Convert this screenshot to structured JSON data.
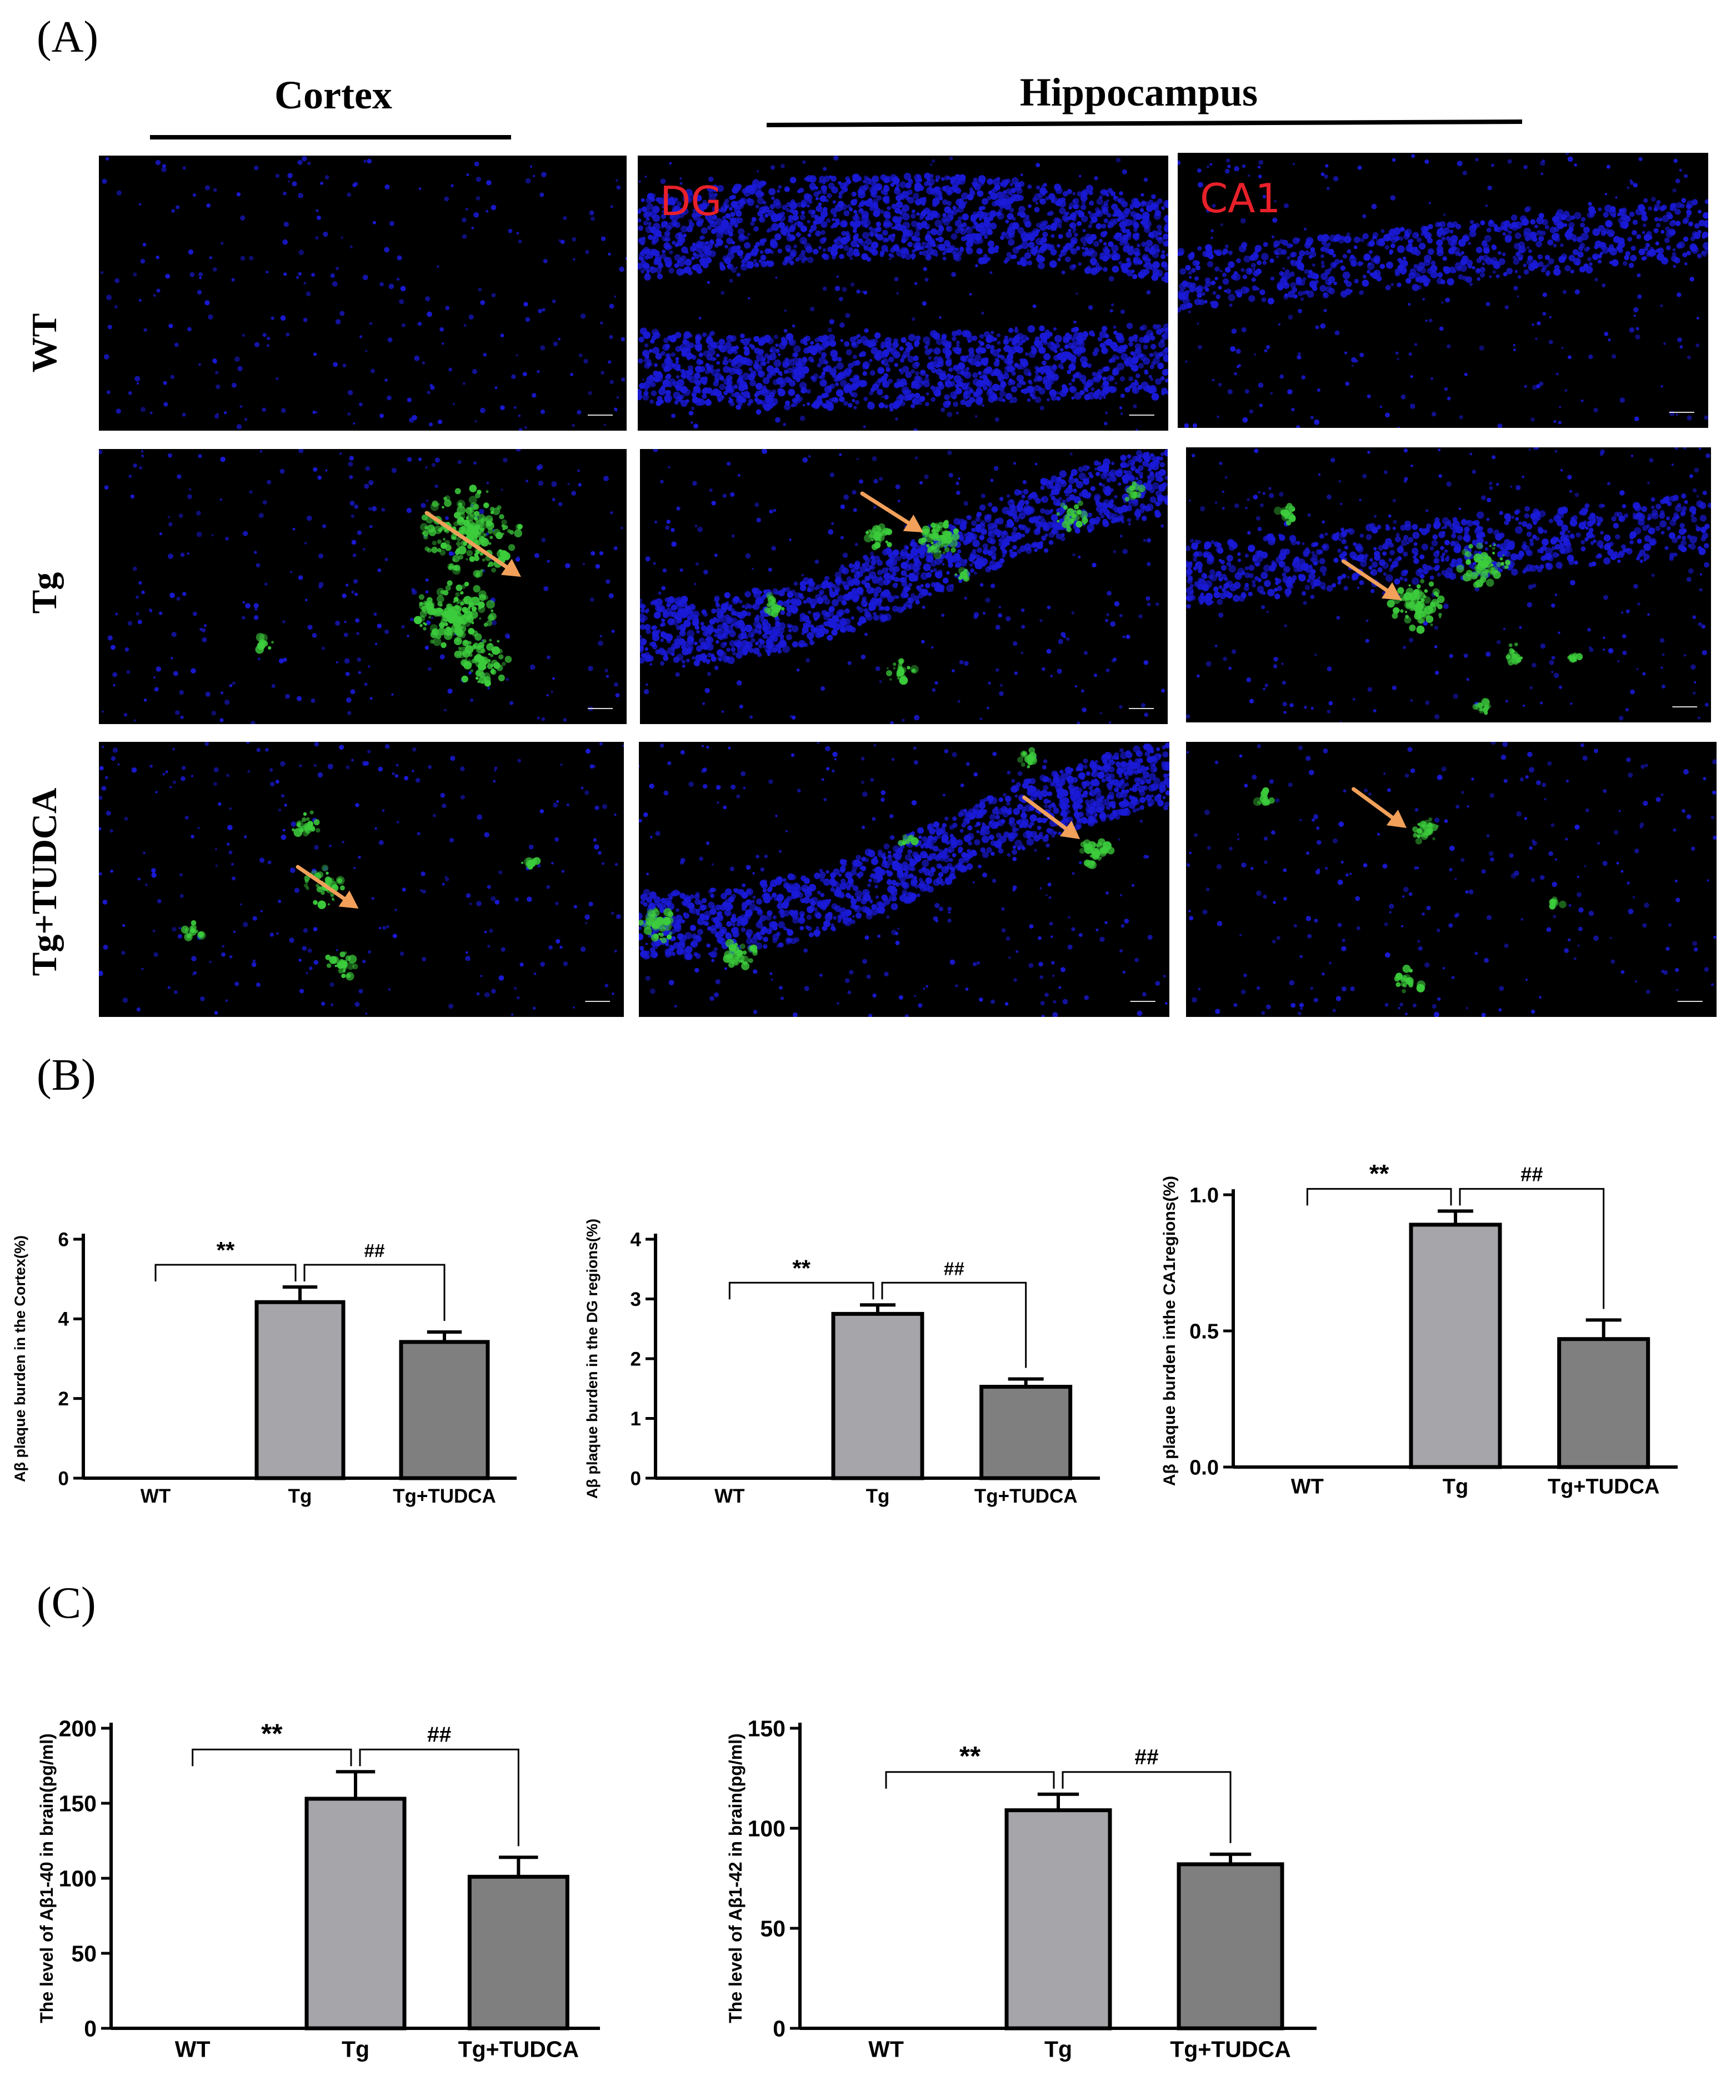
{
  "panels": {
    "A": "(A)",
    "B": "(B)",
    "C": "(C)"
  },
  "regions": {
    "cortex": "Cortex",
    "hippocampus": "Hippocampus"
  },
  "subregions": {
    "dg": "DG",
    "ca1": "CA1"
  },
  "rows": [
    "WT",
    "Tg",
    "Tg+TUDCA"
  ],
  "colors": {
    "nuclei": "#1a1ad8",
    "plaque": "#3ccc3c",
    "arrow": "#f2a05a",
    "tag": "#e8202a",
    "bar_tg": "#a6a6aa",
    "bar_tudca": "#7f7f7f"
  },
  "chart_data": [
    {
      "type": "bar",
      "categories": [
        "WT",
        "Tg",
        "Tg+TUDCA"
      ],
      "values": [
        0,
        4.42,
        3.42
      ],
      "errors": [
        0,
        0.38,
        0.25
      ],
      "ylabel": "Aβ plaque burden in the Cortex(%)",
      "ylim": [
        0,
        6
      ],
      "ticks": [
        0,
        2,
        4,
        6
      ],
      "annotations": [
        {
          "label": "**",
          "from": 0,
          "to": 1
        },
        {
          "label": "##",
          "from": 1,
          "to": 2
        }
      ]
    },
    {
      "type": "bar",
      "categories": [
        "WT",
        "Tg",
        "Tg+TUDCA"
      ],
      "values": [
        0,
        2.75,
        1.53
      ],
      "errors": [
        0,
        0.15,
        0.13
      ],
      "ylabel": "Aβ plaque burden in the DG regions(%)",
      "ylim": [
        0,
        4
      ],
      "ticks": [
        0,
        1,
        2,
        3,
        4
      ],
      "annotations": [
        {
          "label": "**",
          "from": 0,
          "to": 1
        },
        {
          "label": "##",
          "from": 1,
          "to": 2
        }
      ]
    },
    {
      "type": "bar",
      "categories": [
        "WT",
        "Tg",
        "Tg+TUDCA"
      ],
      "values": [
        0,
        0.89,
        0.47
      ],
      "errors": [
        0,
        0.05,
        0.07
      ],
      "ylabel": "Aβ plaque burden inthe CA1regions(%)",
      "ylim": [
        0,
        1.0
      ],
      "ticks": [
        "0.0",
        "0.5",
        "1.0"
      ],
      "annotations": [
        {
          "label": "**",
          "from": 0,
          "to": 1
        },
        {
          "label": "##",
          "from": 1,
          "to": 2
        }
      ]
    },
    {
      "type": "bar",
      "categories": [
        "WT",
        "Tg",
        "Tg+TUDCA"
      ],
      "values": [
        0,
        153,
        101
      ],
      "errors": [
        0,
        18,
        13
      ],
      "ylabel": "The level of Aβ1-40 in brain(pg/ml)",
      "ylim": [
        0,
        200
      ],
      "ticks": [
        0,
        50,
        100,
        150,
        200
      ],
      "annotations": [
        {
          "label": "**",
          "from": 0,
          "to": 1
        },
        {
          "label": "##",
          "from": 1,
          "to": 2
        }
      ]
    },
    {
      "type": "bar",
      "categories": [
        "WT",
        "Tg",
        "Tg+TUDCA"
      ],
      "values": [
        0,
        109,
        82
      ],
      "errors": [
        0,
        8,
        5
      ],
      "ylabel": "The level of Aβ1-42 in brain(pg/ml)",
      "ylim": [
        0,
        150
      ],
      "ticks": [
        0,
        50,
        100,
        150
      ],
      "annotations": [
        {
          "label": "**",
          "from": 0,
          "to": 1
        },
        {
          "label": "##",
          "from": 1,
          "to": 2
        }
      ]
    }
  ]
}
